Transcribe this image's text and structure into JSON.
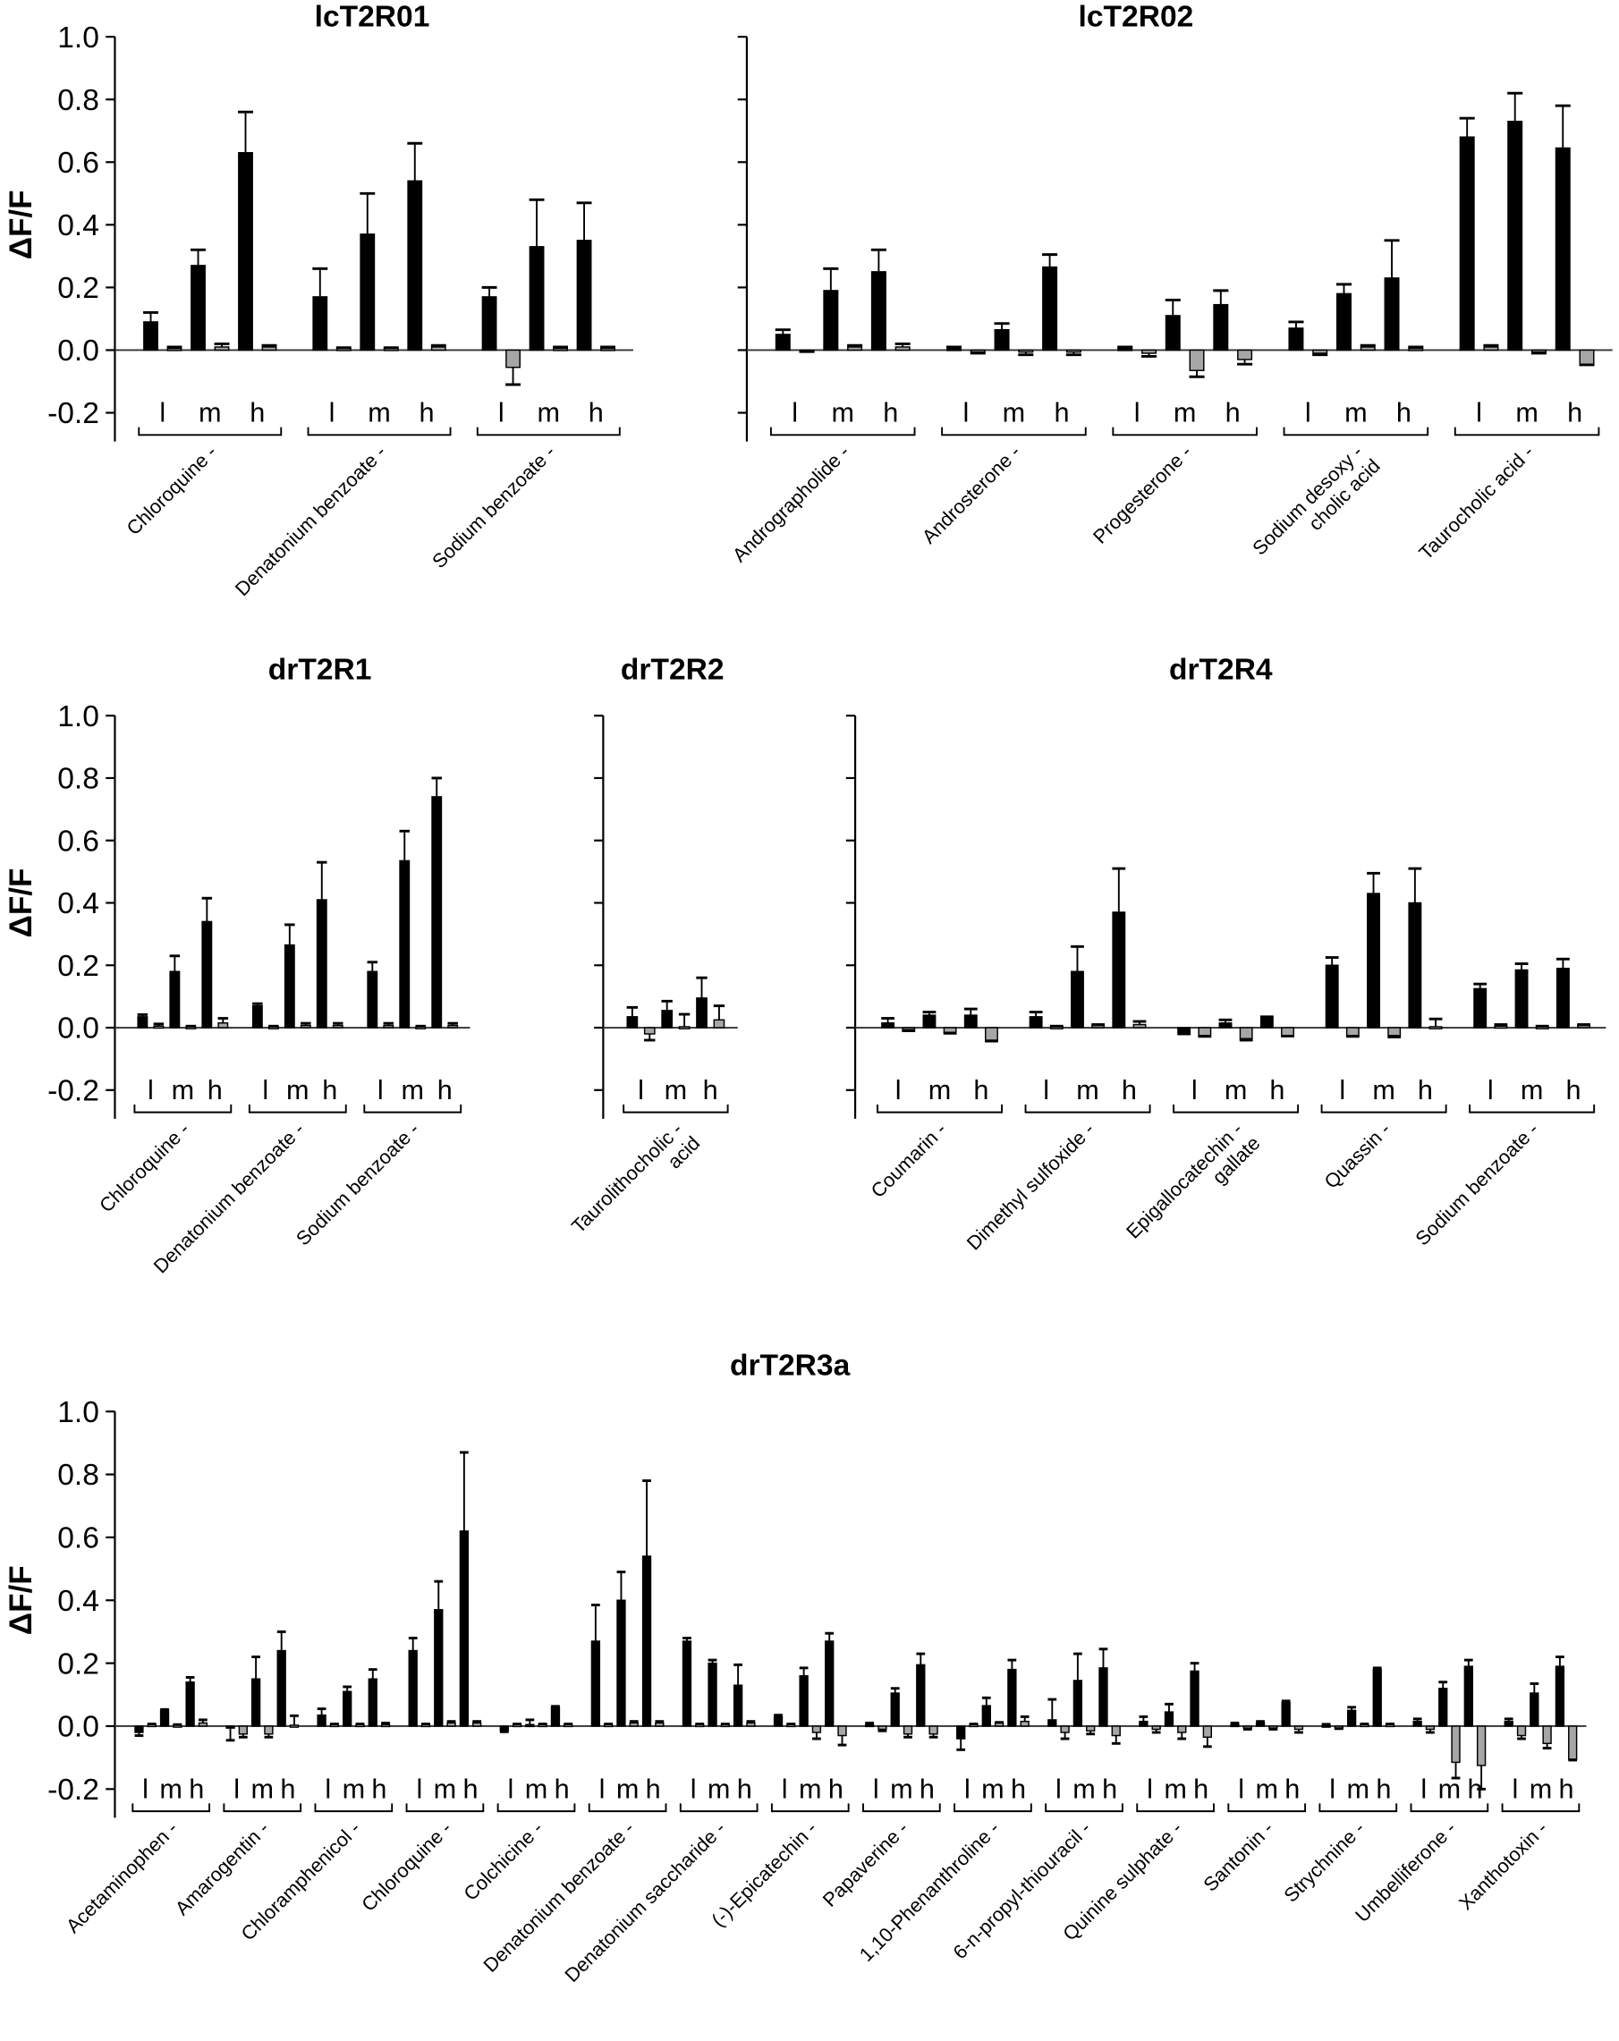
{
  "chart_data": [
    {
      "type": "bar",
      "title": "lcT2R01",
      "ylabel": "ΔF/F",
      "ylim": [
        -0.2,
        1.0
      ],
      "yticks": [
        "1.0",
        "0.8",
        "0.6",
        "0.4",
        "0.2",
        "0.0",
        "-0.2"
      ],
      "concentration_labels": [
        "l",
        "m",
        "h"
      ],
      "series": [
        "black (receptor)",
        "grey (control)"
      ],
      "categories": [
        {
          "label": [
            "Chloroquine -"
          ],
          "values": [
            0.09,
            0.005,
            0.27,
            0.01,
            0.63,
            0.01
          ],
          "errors": [
            0.03,
            0.005,
            0.05,
            0.01,
            0.13,
            0.005
          ]
        },
        {
          "label": [
            "Denatonium benzoate -"
          ],
          "values": [
            0.17,
            0.005,
            0.37,
            0.005,
            0.54,
            0.01
          ],
          "errors": [
            0.09,
            0.003,
            0.13,
            0.003,
            0.12,
            0.005
          ]
        },
        {
          "label": [
            "Sodium benzoate -"
          ],
          "values": [
            0.17,
            -0.055,
            0.33,
            0.005,
            0.35,
            0.005
          ],
          "errors": [
            0.03,
            0.055,
            0.15,
            0.005,
            0.12,
            0.005
          ]
        }
      ]
    },
    {
      "type": "bar",
      "title": "lcT2R02",
      "ylabel": "",
      "ylim": [
        -0.2,
        1.0
      ],
      "yticks": [],
      "concentration_labels": [
        "l",
        "m",
        "h"
      ],
      "categories": [
        {
          "label": [
            "Andrographolide -"
          ],
          "values": [
            0.05,
            -0.003,
            0.19,
            0.01,
            0.25,
            0.01
          ],
          "errors": [
            0.015,
            0.002,
            0.07,
            0.005,
            0.07,
            0.01
          ]
        },
        {
          "label": [
            "Androsterone -"
          ],
          "values": [
            0.005,
            -0.005,
            0.065,
            -0.005,
            0.265,
            -0.005
          ],
          "errors": [
            0.005,
            0.005,
            0.02,
            0.01,
            0.04,
            0.01
          ]
        },
        {
          "label": [
            "Progesterone -"
          ],
          "values": [
            0.005,
            -0.01,
            0.11,
            -0.065,
            0.145,
            -0.03
          ],
          "errors": [
            0.005,
            0.01,
            0.05,
            0.02,
            0.045,
            0.015
          ]
        },
        {
          "label": [
            "Sodium desoxy -",
            "cholic acid"
          ],
          "values": [
            0.07,
            -0.01,
            0.18,
            0.01,
            0.23,
            0.005
          ],
          "errors": [
            0.02,
            0.005,
            0.03,
            0.005,
            0.12,
            0.005
          ]
        },
        {
          "label": [
            "Taurocholic acid -"
          ],
          "values": [
            0.68,
            0.01,
            0.73,
            -0.005,
            0.645,
            -0.045
          ],
          "errors": [
            0.06,
            0.005,
            0.09,
            0.005,
            0.135,
            0.002
          ]
        }
      ]
    },
    {
      "type": "bar",
      "title": "drT2R1",
      "ylabel": "ΔF/F",
      "ylim": [
        -0.2,
        1.0
      ],
      "yticks": [
        "1.0",
        "0.8",
        "0.6",
        "0.4",
        "0.2",
        "0.0",
        "-0.2"
      ],
      "concentration_labels": [
        "l",
        "m",
        "h"
      ],
      "categories": [
        {
          "label": [
            "Chloroquine -"
          ],
          "values": [
            0.035,
            0.005,
            0.18,
            0.003,
            0.34,
            0.015
          ],
          "errors": [
            0.007,
            0.007,
            0.05,
            0.002,
            0.075,
            0.015
          ]
        },
        {
          "label": [
            "Denatonium benzoate -"
          ],
          "values": [
            0.07,
            0.003,
            0.265,
            0.007,
            0.41,
            0.007
          ],
          "errors": [
            0.007,
            0.002,
            0.065,
            0.007,
            0.12,
            0.007
          ]
        },
        {
          "label": [
            "Sodium benzoate -"
          ],
          "values": [
            0.18,
            0.007,
            0.535,
            0.003,
            0.74,
            0.007
          ],
          "errors": [
            0.03,
            0.007,
            0.095,
            0.002,
            0.06,
            0.007
          ]
        }
      ]
    },
    {
      "type": "bar",
      "title": "drT2R2",
      "ylabel": "",
      "ylim": [
        -0.2,
        1.0
      ],
      "yticks": [],
      "concentration_labels": [
        "l",
        "m",
        "h"
      ],
      "categories": [
        {
          "label": [
            "Taurolithocholic -",
            "acid"
          ],
          "values": [
            0.035,
            -0.02,
            0.055,
            0.003,
            0.095,
            0.025
          ],
          "errors": [
            0.03,
            0.02,
            0.03,
            0.04,
            0.065,
            0.045
          ]
        }
      ]
    },
    {
      "type": "bar",
      "title": "drT2R4",
      "ylabel": "",
      "ylim": [
        -0.2,
        1.0
      ],
      "yticks": [],
      "concentration_labels": [
        "l",
        "m",
        "h"
      ],
      "categories": [
        {
          "label": [
            "Coumarin -"
          ],
          "values": [
            0.015,
            -0.005,
            0.04,
            -0.015,
            0.04,
            -0.04
          ],
          "errors": [
            0.015,
            0.005,
            0.01,
            0.003,
            0.02,
            0.003
          ]
        },
        {
          "label": [
            "Dimethyl sulfoxide -"
          ],
          "values": [
            0.035,
            0.003,
            0.18,
            0.007,
            0.37,
            0.01
          ],
          "errors": [
            0.015,
            0.002,
            0.08,
            0.003,
            0.14,
            0.01
          ]
        },
        {
          "label": [
            "Epigallocatechin -",
            "gallate"
          ],
          "values": [
            -0.015,
            -0.025,
            0.015,
            -0.035,
            0.03,
            -0.025
          ],
          "errors": [
            0.005,
            0.003,
            0.01,
            0.005,
            0.005,
            0.002
          ]
        },
        {
          "label": [
            "Quassin -"
          ],
          "values": [
            0.2,
            -0.025,
            0.43,
            -0.025,
            0.4,
            0.003
          ],
          "errors": [
            0.025,
            0.003,
            0.065,
            0.005,
            0.11,
            0.025
          ]
        },
        {
          "label": [
            "Sodium benzoate -"
          ],
          "values": [
            0.125,
            0.005,
            0.185,
            0.003,
            0.19,
            0.007
          ],
          "errors": [
            0.015,
            0.005,
            0.02,
            0.002,
            0.03,
            0.003
          ]
        }
      ]
    },
    {
      "type": "bar",
      "title": "drT2R3a",
      "ylabel": "ΔF/F",
      "ylim": [
        -0.2,
        1.0
      ],
      "yticks": [
        "1.0",
        "0.8",
        "0.6",
        "0.4",
        "0.2",
        "0.0",
        "-0.2"
      ],
      "concentration_labels": [
        "l",
        "m",
        "h"
      ],
      "categories": [
        {
          "label": [
            "Acetaminophen -"
          ],
          "values": [
            -0.02,
            0.005,
            0.05,
            0.003,
            0.14,
            0.01
          ],
          "errors": [
            0.01,
            0.002,
            0.003,
            0.002,
            0.015,
            0.01
          ]
        },
        {
          "label": [
            "Amarogentin -"
          ],
          "values": [
            -0.005,
            -0.025,
            0.15,
            -0.025,
            0.24,
            0.003
          ],
          "errors": [
            0.04,
            0.01,
            0.07,
            0.01,
            0.06,
            0.03
          ]
        },
        {
          "label": [
            "Chloramphenicol -"
          ],
          "values": [
            0.035,
            0.005,
            0.11,
            0.005,
            0.15,
            0.005
          ],
          "errors": [
            0.02,
            0.002,
            0.015,
            0.002,
            0.03,
            0.005
          ]
        },
        {
          "label": [
            "Chloroquine -"
          ],
          "values": [
            0.24,
            0.005,
            0.37,
            0.01,
            0.62,
            0.01
          ],
          "errors": [
            0.04,
            0.002,
            0.09,
            0.005,
            0.25,
            0.005
          ]
        },
        {
          "label": [
            "Colchicine -"
          ],
          "values": [
            -0.015,
            0.005,
            0.005,
            0.005,
            0.06,
            0.005
          ],
          "errors": [
            0.003,
            0.002,
            0.015,
            0.002,
            0.003,
            0.002
          ]
        },
        {
          "label": [
            "Denatonium benzoate -"
          ],
          "values": [
            0.27,
            0.005,
            0.4,
            0.01,
            0.54,
            0.01
          ],
          "errors": [
            0.115,
            0.002,
            0.09,
            0.005,
            0.24,
            0.005
          ]
        },
        {
          "label": [
            "Denatonium saccharide -"
          ],
          "values": [
            0.27,
            0.005,
            0.2,
            0.005,
            0.13,
            0.01
          ],
          "errors": [
            0.01,
            0.002,
            0.01,
            0.002,
            0.065,
            0.005
          ]
        },
        {
          "label": [
            "(-)-Epicatechin -"
          ],
          "values": [
            0.03,
            0.005,
            0.16,
            -0.02,
            0.27,
            -0.03
          ],
          "errors": [
            0.005,
            0.002,
            0.025,
            0.02,
            0.025,
            0.03
          ]
        },
        {
          "label": [
            "Papaverine -"
          ],
          "values": [
            0.005,
            -0.01,
            0.105,
            -0.025,
            0.195,
            -0.025
          ],
          "errors": [
            0.005,
            0.005,
            0.015,
            0.01,
            0.035,
            0.01
          ]
        },
        {
          "label": [
            "1,10-Phenanthroline -"
          ],
          "values": [
            -0.04,
            0.005,
            0.065,
            0.01,
            0.18,
            0.015
          ],
          "errors": [
            0.035,
            0.002,
            0.025,
            0.002,
            0.03,
            0.015
          ]
        },
        {
          "label": [
            "6-n-propyl-thiouracil -"
          ],
          "values": [
            0.02,
            -0.02,
            0.145,
            -0.015,
            0.185,
            -0.03
          ],
          "errors": [
            0.065,
            0.02,
            0.085,
            0.01,
            0.06,
            0.025
          ]
        },
        {
          "label": [
            "Quinine sulphate -"
          ],
          "values": [
            0.015,
            -0.01,
            0.045,
            -0.02,
            0.175,
            -0.035
          ],
          "errors": [
            0.015,
            0.01,
            0.025,
            0.02,
            0.025,
            0.03
          ]
        },
        {
          "label": [
            "Santonin -"
          ],
          "values": [
            0.005,
            -0.005,
            0.01,
            -0.005,
            0.075,
            -0.01
          ],
          "errors": [
            0.005,
            0.005,
            0.005,
            0.005,
            0.005,
            0.01
          ]
        },
        {
          "label": [
            "Strychnine -"
          ],
          "values": [
            0.003,
            -0.005,
            0.05,
            0.005,
            0.18,
            0.005
          ],
          "errors": [
            0.003,
            0.003,
            0.01,
            0.002,
            0.005,
            0.002
          ]
        },
        {
          "label": [
            "Umbelliferone -"
          ],
          "values": [
            0.015,
            -0.01,
            0.12,
            -0.115,
            0.19,
            -0.125
          ],
          "errors": [
            0.008,
            0.01,
            0.02,
            0.05,
            0.02,
            0.075
          ]
        },
        {
          "label": [
            "Xanthotoxin -"
          ],
          "values": [
            0.015,
            -0.03,
            0.105,
            -0.055,
            0.19,
            -0.105
          ],
          "errors": [
            0.008,
            0.01,
            0.03,
            0.015,
            0.03,
            0.003
          ]
        }
      ]
    }
  ],
  "colors": {
    "receptor": "#000000",
    "control": "#a6a6a6",
    "axis": "#000000"
  }
}
